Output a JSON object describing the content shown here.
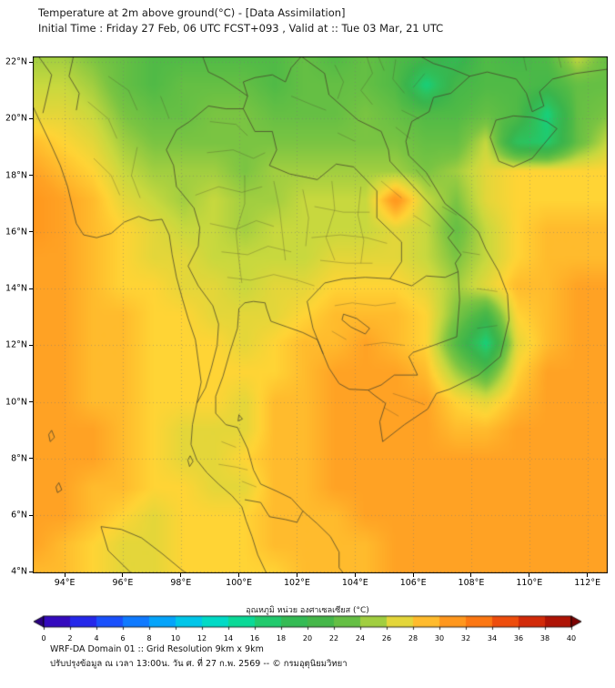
{
  "header": {
    "title_line1": "Temperature at 2m above ground(°C) - [Data Assimilation]",
    "title_line2": "Initial Time : Friday 27 Feb, 06 UTC FCST+093 , Valid at :: Tue 03 Mar, 21 UTC"
  },
  "footer": {
    "line1": "WRF-DA Domain 01 :: Grid Resolution 9km x 9km",
    "line2": "ปรับปรุงข้อมูล ณ เวลา 13:00น. วัน ศ. ที่ 27 ก.พ. 2569 -- © กรมอุตุนิยมวิทยา"
  },
  "colorbar": {
    "label": "อุณหภูมิ หน่วย องศาเซลเซียส (°C)",
    "ticks": [
      0,
      2,
      4,
      6,
      8,
      10,
      12,
      14,
      16,
      18,
      20,
      22,
      24,
      26,
      28,
      30,
      32,
      34,
      36,
      38,
      40
    ],
    "left_arrow_color": "#2a0080",
    "right_arrow_color": "#7c0202"
  },
  "axes": {
    "x_ticks": [
      {
        "lon": 94,
        "label": "94°E"
      },
      {
        "lon": 96,
        "label": "96°E"
      },
      {
        "lon": 98,
        "label": "98°E"
      },
      {
        "lon": 100,
        "label": "100°E"
      },
      {
        "lon": 102,
        "label": "102°E"
      },
      {
        "lon": 104,
        "label": "104°E"
      },
      {
        "lon": 106,
        "label": "106°E"
      },
      {
        "lon": 108,
        "label": "108°E"
      },
      {
        "lon": 110,
        "label": "110°E"
      },
      {
        "lon": 112,
        "label": "112°E"
      }
    ],
    "y_ticks": [
      {
        "lat": 22,
        "label": "22°N"
      },
      {
        "lat": 20,
        "label": "20°N"
      },
      {
        "lat": 18,
        "label": "18°N"
      },
      {
        "lat": 16,
        "label": "16°N"
      },
      {
        "lat": 14,
        "label": "14°N"
      },
      {
        "lat": 12,
        "label": "12°N"
      },
      {
        "lat": 10,
        "label": "10°N"
      },
      {
        "lat": 8,
        "label": "8°N"
      },
      {
        "lat": 6,
        "label": "6°N"
      },
      {
        "lat": 4,
        "label": "4°N"
      }
    ]
  },
  "chart_data": {
    "type": "heatmap",
    "title": "Temperature at 2m above ground (°C), WRF-DA Domain 01",
    "units": "°C",
    "value_range": [
      0,
      40
    ],
    "extent": {
      "lon_min": 92.9,
      "lon_max": 112.7,
      "lat_min": 3.95,
      "lat_max": 22.2
    },
    "colormap": {
      "min": 0,
      "max": 40,
      "stops": [
        [
          0,
          "#3c00a0"
        ],
        [
          2,
          "#2c14dc"
        ],
        [
          4,
          "#1e3cf8"
        ],
        [
          6,
          "#1464ff"
        ],
        [
          8,
          "#0a90ff"
        ],
        [
          10,
          "#00b8f5"
        ],
        [
          12,
          "#00d4dc"
        ],
        [
          14,
          "#00e0b0"
        ],
        [
          16,
          "#14d27e"
        ],
        [
          18,
          "#2ec15c"
        ],
        [
          20,
          "#3ab44c"
        ],
        [
          22,
          "#50ba46"
        ],
        [
          24,
          "#7ac442"
        ],
        [
          26,
          "#c8d83e"
        ],
        [
          28,
          "#ffd435"
        ],
        [
          30,
          "#ffa224"
        ],
        [
          32,
          "#ff8c16"
        ],
        [
          34,
          "#f8620e"
        ],
        [
          36,
          "#e43809"
        ],
        [
          38,
          "#c01c06"
        ],
        [
          40,
          "#9c0a03"
        ]
      ]
    },
    "grid": {
      "nx": 20,
      "ny": 19,
      "note": "temperature values °C, rows top(22.2N) to bottom(3.95N), cols 92.9E to 112.7E",
      "values": [
        [
          25,
          25,
          24,
          23,
          22,
          22,
          22,
          22,
          22,
          23,
          22,
          23,
          22,
          21,
          19,
          22,
          21,
          22,
          26,
          23
        ],
        [
          26,
          26,
          25,
          23,
          22,
          23,
          23,
          23,
          22,
          23,
          23,
          23,
          22,
          16,
          21,
          22,
          22,
          21,
          23,
          23
        ],
        [
          27,
          27,
          26,
          24,
          23,
          23,
          24,
          24,
          23,
          23,
          23,
          24,
          23,
          22,
          22,
          23,
          22,
          16,
          23,
          24
        ],
        [
          29,
          28,
          27,
          25,
          24,
          24,
          24,
          24,
          24,
          24,
          24,
          24,
          24,
          23,
          23,
          26,
          18,
          17,
          23,
          26
        ],
        [
          30,
          29,
          28,
          26,
          25,
          25,
          25,
          24,
          25,
          25,
          25,
          25,
          25,
          24,
          25,
          27,
          28,
          28,
          28,
          28
        ],
        [
          31,
          30,
          29,
          27,
          26,
          25,
          26,
          25,
          25,
          26,
          26,
          26,
          31,
          26,
          24,
          27,
          28,
          28,
          28,
          28
        ],
        [
          31,
          30,
          29,
          28,
          27,
          26,
          26,
          25,
          26,
          26,
          26,
          26,
          27,
          26,
          23,
          26,
          28,
          29,
          29,
          29
        ],
        [
          30,
          30,
          29,
          28,
          27,
          27,
          26,
          26,
          26,
          26,
          27,
          27,
          27,
          26,
          24,
          26,
          28,
          29,
          29,
          29
        ],
        [
          30,
          30,
          29,
          28,
          28,
          27,
          27,
          26,
          27,
          27,
          28,
          28,
          28,
          27,
          25,
          27,
          29,
          29,
          30,
          30
        ],
        [
          30,
          30,
          29,
          29,
          28,
          28,
          27,
          27,
          27,
          28,
          29,
          29,
          29,
          28,
          24,
          21,
          28,
          29,
          30,
          30
        ],
        [
          30,
          30,
          29,
          29,
          28,
          28,
          28,
          27,
          28,
          29,
          29,
          30,
          29,
          28,
          22,
          16,
          27,
          29,
          30,
          30
        ],
        [
          30,
          30,
          29,
          29,
          28,
          28,
          28,
          28,
          28,
          29,
          30,
          30,
          30,
          29,
          25,
          22,
          28,
          30,
          30,
          30
        ],
        [
          30,
          30,
          29,
          29,
          28,
          28,
          28,
          27,
          29,
          29,
          30,
          30,
          30,
          30,
          28,
          27,
          29,
          30,
          30,
          30
        ],
        [
          30,
          30,
          30,
          29,
          28,
          27,
          27,
          27,
          29,
          29,
          30,
          30,
          30,
          30,
          29,
          29,
          30,
          30,
          30,
          30
        ],
        [
          30,
          30,
          30,
          29,
          28,
          27,
          27,
          28,
          29,
          29,
          30,
          30,
          30,
          30,
          30,
          30,
          30,
          30,
          30,
          30
        ],
        [
          30,
          30,
          29,
          29,
          28,
          28,
          27,
          27,
          29,
          29,
          30,
          30,
          30,
          30,
          30,
          30,
          30,
          30,
          30,
          30
        ],
        [
          30,
          30,
          29,
          28,
          27,
          28,
          28,
          28,
          29,
          29,
          29,
          30,
          30,
          30,
          30,
          30,
          30,
          30,
          30,
          30
        ],
        [
          30,
          29,
          28,
          27,
          27,
          28,
          28,
          28,
          29,
          29,
          29,
          29,
          30,
          30,
          30,
          30,
          30,
          30,
          30,
          30
        ],
        [
          29,
          29,
          28,
          27,
          27,
          28,
          28,
          28,
          28,
          29,
          29,
          29,
          30,
          30,
          30,
          30,
          30,
          30,
          30,
          30
        ]
      ]
    }
  }
}
